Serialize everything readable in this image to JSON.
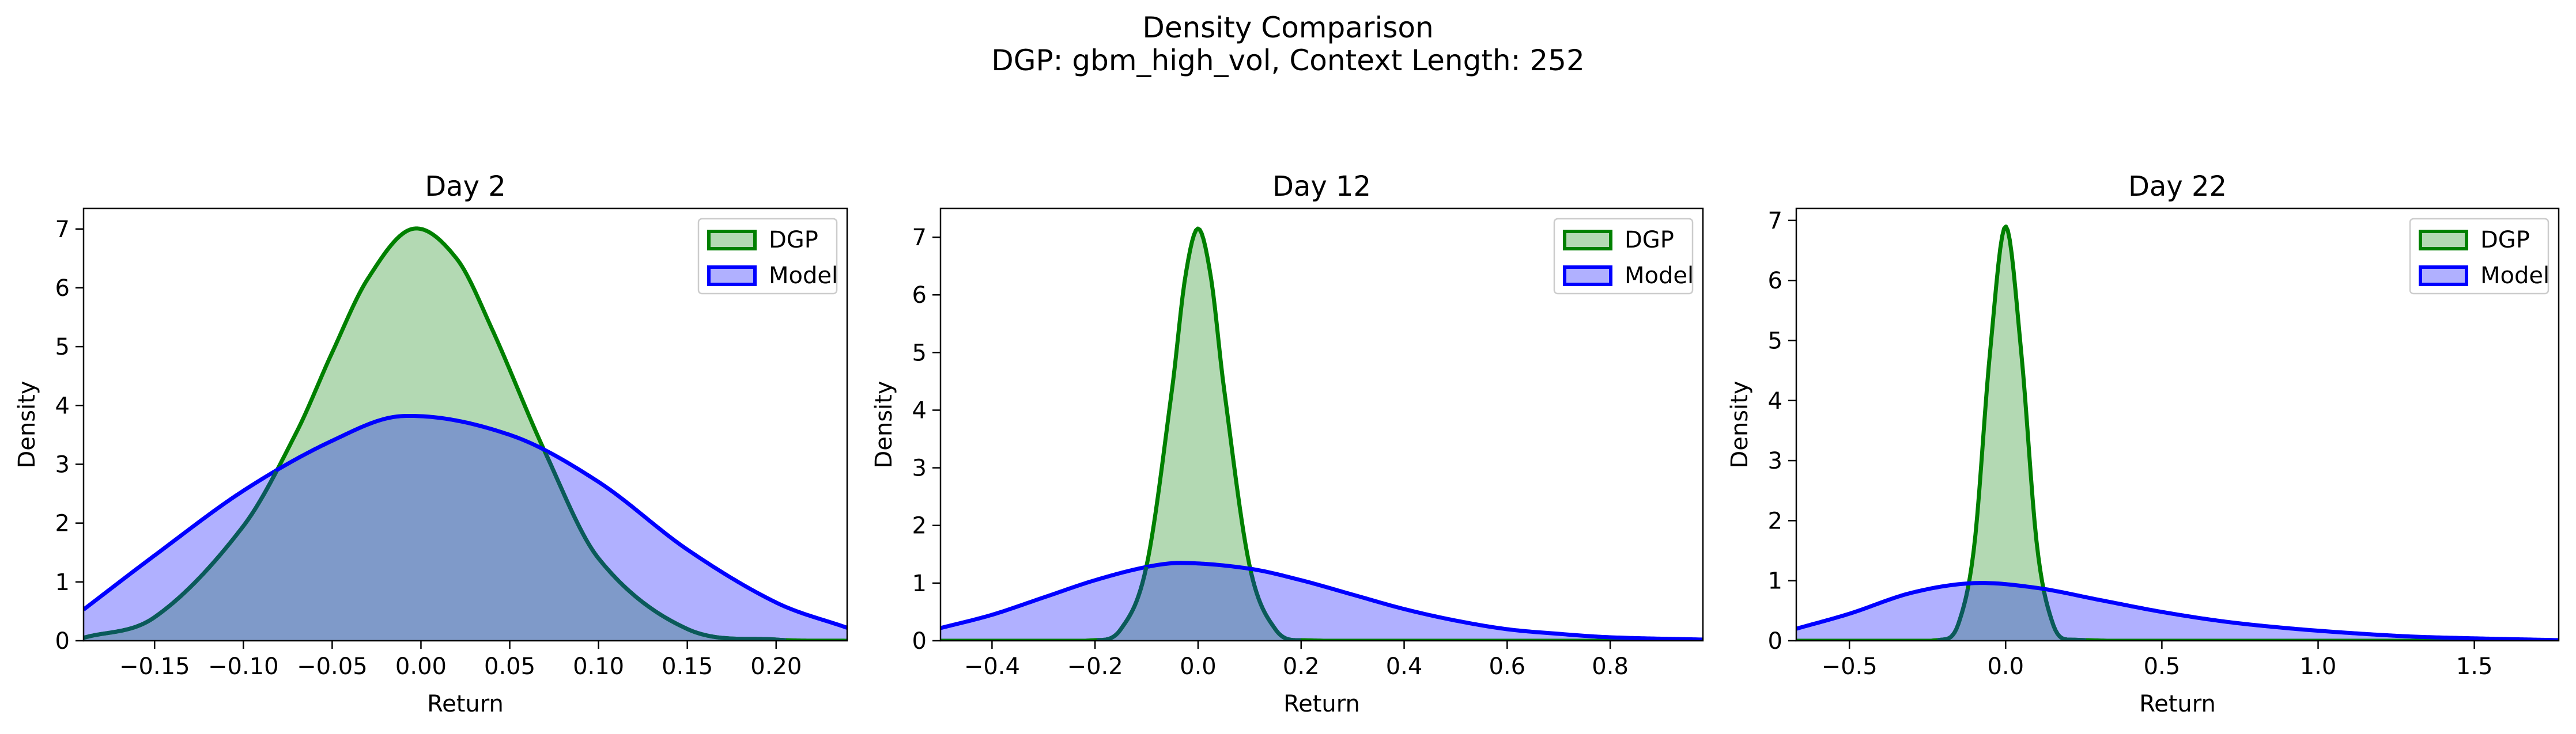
{
  "figure": {
    "title_line1": "Density Comparison",
    "title_line2": "DGP: gbm_high_vol, Context Length: 252"
  },
  "colors": {
    "dgp_line": "#008000",
    "dgp_fill": "#b3d9b3",
    "model_line": "#0000ff",
    "model_fill": "#b0b0ff",
    "overlap_fill": "#7f9ac9"
  },
  "chart_data": [
    {
      "type": "area",
      "title": "Day 2",
      "xlabel": "Return",
      "ylabel": "Density",
      "xlim": [
        -0.19,
        0.24
      ],
      "ylim": [
        0,
        7.35
      ],
      "xticks": [
        -0.15,
        -0.1,
        -0.05,
        0.0,
        0.05,
        0.1,
        0.15,
        0.2
      ],
      "xtick_labels": [
        "−0.15",
        "−0.10",
        "−0.05",
        "0.00",
        "0.05",
        "0.10",
        "0.15",
        "0.20"
      ],
      "yticks": [
        0,
        1,
        2,
        3,
        4,
        5,
        6,
        7
      ],
      "ytick_labels": [
        "0",
        "1",
        "2",
        "3",
        "4",
        "5",
        "6",
        "7"
      ],
      "legend_position": "top-right",
      "series": [
        {
          "name": "DGP",
          "x": [
            -0.19,
            -0.15,
            -0.1,
            -0.07,
            -0.05,
            -0.03,
            -0.005,
            0.02,
            0.04,
            0.07,
            0.1,
            0.15,
            0.2,
            0.24
          ],
          "y": [
            0.05,
            0.4,
            1.95,
            3.55,
            4.9,
            6.15,
            7.0,
            6.5,
            5.3,
            3.2,
            1.4,
            0.2,
            0.02,
            0.0
          ]
        },
        {
          "name": "Model",
          "x": [
            -0.19,
            -0.15,
            -0.1,
            -0.05,
            -0.01,
            0.05,
            0.1,
            0.15,
            0.2,
            0.24
          ],
          "y": [
            0.53,
            1.45,
            2.55,
            3.4,
            3.82,
            3.5,
            2.7,
            1.55,
            0.65,
            0.22
          ]
        }
      ]
    },
    {
      "type": "area",
      "title": "Day 12",
      "xlabel": "Return",
      "ylabel": "Density",
      "xlim": [
        -0.5,
        0.98
      ],
      "ylim": [
        0,
        7.5
      ],
      "xticks": [
        -0.4,
        -0.2,
        0.0,
        0.2,
        0.4,
        0.6,
        0.8
      ],
      "xtick_labels": [
        "−0.4",
        "−0.2",
        "0.0",
        "0.2",
        "0.4",
        "0.6",
        "0.8"
      ],
      "yticks": [
        0,
        1,
        2,
        3,
        4,
        5,
        6,
        7
      ],
      "ytick_labels": [
        "0",
        "1",
        "2",
        "3",
        "4",
        "5",
        "6",
        "7"
      ],
      "legend_position": "top-right",
      "series": [
        {
          "name": "DGP",
          "x": [
            -0.5,
            -0.2,
            -0.15,
            -0.1,
            -0.05,
            -0.025,
            0.0,
            0.025,
            0.05,
            0.1,
            0.15,
            0.2,
            0.98
          ],
          "y": [
            0.0,
            0.01,
            0.2,
            1.3,
            4.4,
            6.3,
            7.15,
            6.3,
            4.4,
            1.3,
            0.2,
            0.01,
            0.0
          ]
        },
        {
          "name": "Model",
          "x": [
            -0.5,
            -0.4,
            -0.3,
            -0.2,
            -0.1,
            -0.03,
            0.1,
            0.2,
            0.3,
            0.4,
            0.5,
            0.6,
            0.7,
            0.8,
            0.98
          ],
          "y": [
            0.22,
            0.45,
            0.75,
            1.05,
            1.28,
            1.35,
            1.25,
            1.05,
            0.8,
            0.55,
            0.35,
            0.2,
            0.12,
            0.06,
            0.02
          ]
        }
      ]
    },
    {
      "type": "area",
      "title": "Day 22",
      "xlabel": "Return",
      "ylabel": "Density",
      "xlim": [
        -0.67,
        1.77
      ],
      "ylim": [
        0,
        7.2
      ],
      "xticks": [
        -0.5,
        0.0,
        0.5,
        1.0,
        1.5
      ],
      "xtick_labels": [
        "−0.5",
        "0.0",
        "0.5",
        "1.0",
        "1.5"
      ],
      "yticks": [
        0,
        1,
        2,
        3,
        4,
        5,
        6,
        7
      ],
      "ytick_labels": [
        "0",
        "1",
        "2",
        "3",
        "4",
        "5",
        "6",
        "7"
      ],
      "legend_position": "top-right",
      "series": [
        {
          "name": "DGP",
          "x": [
            -0.67,
            -0.2,
            -0.15,
            -0.1,
            -0.05,
            0.0,
            0.05,
            0.1,
            0.15,
            0.2,
            1.77
          ],
          "y": [
            0.0,
            0.02,
            0.3,
            1.6,
            4.8,
            6.9,
            4.8,
            1.6,
            0.3,
            0.02,
            0.0
          ]
        },
        {
          "name": "Model",
          "x": [
            -0.67,
            -0.5,
            -0.3,
            -0.1,
            0.1,
            0.3,
            0.5,
            0.7,
            0.9,
            1.1,
            1.3,
            1.5,
            1.77
          ],
          "y": [
            0.2,
            0.45,
            0.8,
            0.96,
            0.88,
            0.68,
            0.48,
            0.32,
            0.21,
            0.13,
            0.07,
            0.04,
            0.01
          ]
        }
      ]
    }
  ]
}
